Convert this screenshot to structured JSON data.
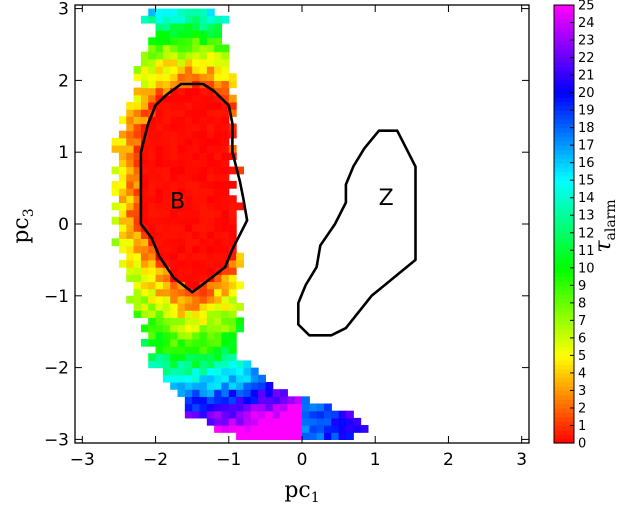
{
  "chart_data": {
    "type": "heatmap",
    "xlabel": "pc",
    "xlabel_sub": "1",
    "ylabel": "pc",
    "ylabel_sub": "3",
    "xlim": [
      -3.1,
      3.1
    ],
    "ylim": [
      -3.05,
      3.05
    ],
    "xticks": [
      -3,
      -2,
      -1,
      0,
      1,
      2,
      3
    ],
    "yticks": [
      -3,
      -2,
      -1,
      0,
      1,
      2,
      3
    ],
    "xtick_labels": [
      "−3",
      "−2",
      "−1",
      "0",
      "1",
      "2",
      "3"
    ],
    "ytick_labels": [
      "−3",
      "−2",
      "−1",
      "0",
      "1",
      "2",
      "3"
    ],
    "grid": false,
    "colorbar": {
      "label": "τ",
      "label_sub": "alarm",
      "min": 0,
      "max": 25,
      "ticks": [
        0,
        1,
        2,
        3,
        4,
        5,
        6,
        7,
        8,
        9,
        10,
        11,
        12,
        13,
        14,
        15,
        16,
        17,
        18,
        19,
        20,
        21,
        22,
        23,
        24,
        25
      ],
      "colormap": "gist_rainbow"
    },
    "cell_size": 0.1,
    "band": {
      "description": "tau values shown in the crescent-shaped filled region (bin centers)",
      "profile": [
        {
          "y": 2.95,
          "x_from": -2.05,
          "x_to": -1.15
        },
        {
          "y": 2.5,
          "x_from": -2.15,
          "x_to": -1.05
        },
        {
          "y": 2.0,
          "x_from": -2.3,
          "x_to": -0.95
        },
        {
          "y": 1.0,
          "x_from": -2.55,
          "x_to": -0.95
        },
        {
          "y": 0.0,
          "x_from": -2.55,
          "x_to": -0.85
        },
        {
          "y": -1.0,
          "x_from": -2.35,
          "x_to": -0.85
        },
        {
          "y": -1.5,
          "x_from": -2.15,
          "x_to": -0.85
        },
        {
          "y": -2.0,
          "x_from": -2.05,
          "x_to": -0.75
        },
        {
          "y": -2.4,
          "x_from": -1.75,
          "x_to": -0.1
        },
        {
          "y": -2.7,
          "x_from": -1.55,
          "x_to": 0.85
        },
        {
          "y": -2.95,
          "x_from": -0.95,
          "x_to": 0.75
        }
      ]
    },
    "contours": [
      {
        "name": "B",
        "label_pos": [
          -1.7,
          0.3
        ],
        "points": [
          [
            -1.65,
            1.95
          ],
          [
            -1.35,
            1.95
          ],
          [
            -1.2,
            1.85
          ],
          [
            -1.0,
            1.65
          ],
          [
            -0.95,
            1.4
          ],
          [
            -0.95,
            1.0
          ],
          [
            -0.85,
            0.6
          ],
          [
            -0.8,
            0.35
          ],
          [
            -0.75,
            0.05
          ],
          [
            -0.85,
            -0.15
          ],
          [
            -0.95,
            -0.35
          ],
          [
            -1.05,
            -0.6
          ],
          [
            -1.3,
            -0.8
          ],
          [
            -1.5,
            -0.95
          ],
          [
            -1.75,
            -0.75
          ],
          [
            -1.95,
            -0.45
          ],
          [
            -2.05,
            -0.2
          ],
          [
            -2.2,
            0.0
          ],
          [
            -2.2,
            0.5
          ],
          [
            -2.2,
            1.0
          ],
          [
            -2.1,
            1.4
          ],
          [
            -2.0,
            1.65
          ],
          [
            -1.85,
            1.8
          ]
        ]
      },
      {
        "name": "Z",
        "label_pos": [
          1.15,
          0.35
        ],
        "points": [
          [
            1.05,
            1.3
          ],
          [
            1.3,
            1.3
          ],
          [
            1.45,
            1.0
          ],
          [
            1.55,
            0.8
          ],
          [
            1.55,
            0.3
          ],
          [
            1.55,
            -0.5
          ],
          [
            1.25,
            -0.75
          ],
          [
            0.95,
            -1.0
          ],
          [
            0.6,
            -1.45
          ],
          [
            0.4,
            -1.55
          ],
          [
            0.1,
            -1.55
          ],
          [
            -0.05,
            -1.4
          ],
          [
            -0.05,
            -1.1
          ],
          [
            0.05,
            -0.85
          ],
          [
            0.2,
            -0.6
          ],
          [
            0.25,
            -0.3
          ],
          [
            0.35,
            -0.15
          ],
          [
            0.45,
            0.0
          ],
          [
            0.6,
            0.3
          ],
          [
            0.6,
            0.55
          ],
          [
            0.7,
            0.8
          ],
          [
            0.85,
            1.05
          ]
        ]
      }
    ]
  }
}
